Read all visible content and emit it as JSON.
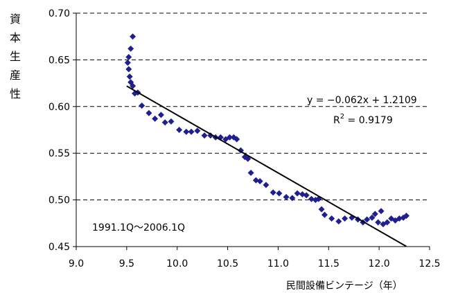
{
  "chart_data": {
    "type": "scatter",
    "title": "",
    "xlabel": "民間設備ビンテージ（年）",
    "ylabel": "資本生産性",
    "xlim": [
      9.0,
      12.5
    ],
    "ylim": [
      0.45,
      0.7
    ],
    "x_ticks": [
      "9.0",
      "9.5",
      "10.0",
      "10.5",
      "11.0",
      "11.5",
      "12.0",
      "12.5"
    ],
    "y_ticks": [
      "0.45",
      "0.50",
      "0.55",
      "0.60",
      "0.65",
      "0.70"
    ],
    "grid": "horizontal-dashed",
    "series": [
      {
        "marker": "diamond",
        "color": "#1f1f8f",
        "points": [
          [
            9.56,
            0.675
          ],
          [
            9.54,
            0.662
          ],
          [
            9.52,
            0.653
          ],
          [
            9.51,
            0.647
          ],
          [
            9.52,
            0.64
          ],
          [
            9.53,
            0.632
          ],
          [
            9.54,
            0.626
          ],
          [
            9.56,
            0.622
          ],
          [
            9.58,
            0.614
          ],
          [
            9.61,
            0.615
          ],
          [
            9.65,
            0.601
          ],
          [
            9.72,
            0.593
          ],
          [
            9.78,
            0.587
          ],
          [
            9.84,
            0.591
          ],
          [
            9.88,
            0.583
          ],
          [
            9.94,
            0.584
          ],
          [
            10.02,
            0.575
          ],
          [
            10.09,
            0.573
          ],
          [
            10.14,
            0.573
          ],
          [
            10.2,
            0.574
          ],
          [
            10.27,
            0.569
          ],
          [
            10.33,
            0.569
          ],
          [
            10.38,
            0.567
          ],
          [
            10.43,
            0.567
          ],
          [
            10.48,
            0.565
          ],
          [
            10.52,
            0.567
          ],
          [
            10.56,
            0.567
          ],
          [
            10.59,
            0.565
          ],
          [
            10.63,
            0.553
          ],
          [
            10.67,
            0.546
          ],
          [
            10.7,
            0.544
          ],
          [
            10.73,
            0.529
          ],
          [
            10.78,
            0.521
          ],
          [
            10.82,
            0.52
          ],
          [
            10.88,
            0.516
          ],
          [
            10.95,
            0.508
          ],
          [
            11.01,
            0.507
          ],
          [
            11.08,
            0.503
          ],
          [
            11.14,
            0.502
          ],
          [
            11.19,
            0.507
          ],
          [
            11.24,
            0.506
          ],
          [
            11.28,
            0.505
          ],
          [
            11.33,
            0.501
          ],
          [
            11.37,
            0.5
          ],
          [
            11.4,
            0.501
          ],
          [
            11.43,
            0.49
          ],
          [
            11.46,
            0.484
          ],
          [
            11.53,
            0.48
          ],
          [
            11.6,
            0.477
          ],
          [
            11.66,
            0.48
          ],
          [
            11.73,
            0.481
          ],
          [
            11.79,
            0.479
          ],
          [
            11.84,
            0.476
          ],
          [
            11.88,
            0.479
          ],
          [
            11.93,
            0.481
          ],
          [
            11.96,
            0.485
          ],
          [
            11.99,
            0.476
          ],
          [
            12.02,
            0.488
          ],
          [
            12.04,
            0.474
          ],
          [
            12.08,
            0.476
          ],
          [
            12.12,
            0.48
          ],
          [
            12.16,
            0.478
          ],
          [
            12.2,
            0.48
          ],
          [
            12.24,
            0.481
          ],
          [
            12.27,
            0.483
          ]
        ]
      }
    ],
    "trendline": {
      "slope": -0.062,
      "intercept": 1.2109,
      "x_start": 9.5,
      "x_end": 12.27,
      "color": "#000000"
    },
    "annotations": {
      "equation": "y = −0.062x + 1.2109",
      "r2_base": "R",
      "r2_sup": "2",
      "r2_rest": " = 0.9179",
      "period": "1991.1Q～2006.1Q"
    }
  }
}
